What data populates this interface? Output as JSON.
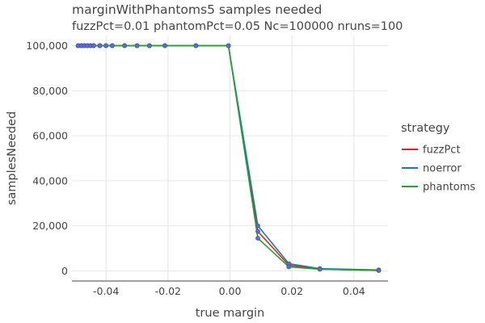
{
  "chart_data": {
    "type": "line",
    "title": "marginWithPhantoms5 samples needed",
    "subtitle": "fuzzPct=0.01 phantomPct=0.05 Nc=100000 nruns=100",
    "xlabel": "true margin",
    "ylabel": "samplesNeeded",
    "xlim": [
      -0.051,
      0.051
    ],
    "ylim": [
      -4500,
      104500
    ],
    "x_ticks": [
      -0.04,
      -0.02,
      0.0,
      0.02,
      0.04
    ],
    "x_tick_labels": [
      "-0.04",
      "-0.02",
      "0.00",
      "0.02",
      "0.04"
    ],
    "y_ticks": [
      0,
      20000,
      40000,
      60000,
      80000,
      100000
    ],
    "y_tick_labels": [
      "0",
      "20,000",
      "40,000",
      "60,000",
      "80,000",
      "100,000"
    ],
    "grid": true,
    "legend": {
      "title": "strategy",
      "position": "right"
    },
    "marker_color": "#5b6fc9",
    "series": [
      {
        "name": "fuzzPct",
        "color": "#d62728",
        "x": [
          -0.049,
          -0.048,
          -0.047,
          -0.046,
          -0.045,
          -0.044,
          -0.042,
          -0.04,
          -0.038,
          -0.034,
          -0.03,
          -0.026,
          -0.021,
          -0.011,
          -0.0005,
          0.009,
          0.019,
          0.029,
          0.048
        ],
        "y": [
          100000,
          100000,
          100000,
          100000,
          100000,
          100000,
          100000,
          100000,
          100000,
          100000,
          100000,
          100000,
          100000,
          100000,
          100000,
          17500,
          2500,
          800,
          200
        ]
      },
      {
        "name": "noerror",
        "color": "#1f77b4",
        "x": [
          -0.049,
          -0.048,
          -0.047,
          -0.046,
          -0.045,
          -0.044,
          -0.042,
          -0.04,
          -0.038,
          -0.034,
          -0.03,
          -0.026,
          -0.021,
          -0.011,
          -0.0005,
          0.009,
          0.019,
          0.029,
          0.048
        ],
        "y": [
          100000,
          100000,
          100000,
          100000,
          100000,
          100000,
          100000,
          100000,
          100000,
          100000,
          100000,
          100000,
          100000,
          100000,
          100000,
          20000,
          3200,
          1000,
          400
        ]
      },
      {
        "name": "phantoms",
        "color": "#2ca02c",
        "x": [
          -0.049,
          -0.048,
          -0.047,
          -0.046,
          -0.045,
          -0.044,
          -0.042,
          -0.04,
          -0.038,
          -0.034,
          -0.03,
          -0.026,
          -0.021,
          -0.011,
          -0.0005,
          0.009,
          0.019,
          0.029,
          0.048
        ],
        "y": [
          100000,
          100000,
          100000,
          100000,
          100000,
          100000,
          100000,
          100000,
          100000,
          100000,
          100000,
          100000,
          100000,
          100000,
          100000,
          14500,
          1800,
          700,
          200
        ]
      }
    ]
  }
}
